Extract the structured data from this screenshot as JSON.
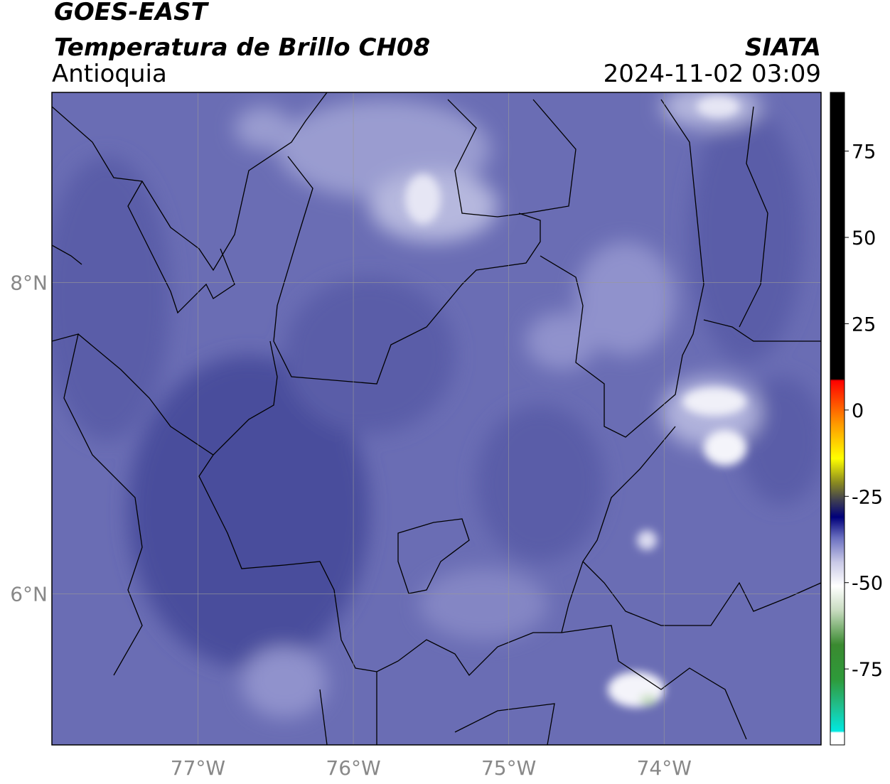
{
  "map": {
    "title": "GOES-EAST",
    "subtitle": "Temperatura de Brillo CH08",
    "region": "Antioquia",
    "source": "SIATA",
    "datetime": "2024-11-02 03:09",
    "xlim": [
      -77.94,
      -72.99
    ],
    "ylim": [
      5.03,
      9.22
    ],
    "xticks": [
      {
        "value": -77,
        "label": "77°W"
      },
      {
        "value": -76,
        "label": "76°W"
      },
      {
        "value": -75,
        "label": "75°W"
      },
      {
        "value": -74,
        "label": "74°W"
      }
    ],
    "yticks": [
      {
        "value": 8,
        "label": "8°N"
      },
      {
        "value": 6,
        "label": "6°N"
      }
    ],
    "grid": true,
    "colorbar": {
      "lim": [
        -97,
        92
      ],
      "ticks": [
        75,
        50,
        25,
        0,
        -25,
        -50,
        -75
      ],
      "stops": [
        {
          "value": -97,
          "color": "#ffffff"
        },
        {
          "value": -93.5,
          "color": "#ffffff"
        },
        {
          "value": -93,
          "color": "#00e8e0"
        },
        {
          "value": -86,
          "color": "#20c090"
        },
        {
          "value": -78,
          "color": "#2e9a3a"
        },
        {
          "value": -68,
          "color": "#3a8a30"
        },
        {
          "value": -58,
          "color": "#c8dcc0"
        },
        {
          "value": -51,
          "color": "#ffffff"
        },
        {
          "value": -44,
          "color": "#c8c8e6"
        },
        {
          "value": -37,
          "color": "#6a6fc0"
        },
        {
          "value": -31,
          "color": "#00007a"
        },
        {
          "value": -26,
          "color": "#404050"
        },
        {
          "value": -21,
          "color": "#8a8a20"
        },
        {
          "value": -14,
          "color": "#ffff00"
        },
        {
          "value": -4,
          "color": "#ff9900"
        },
        {
          "value": 6,
          "color": "#ff2000"
        },
        {
          "value": 8.5,
          "color": "#ff0000"
        },
        {
          "value": 9,
          "color": "#000000"
        },
        {
          "value": 92,
          "color": "#000000"
        }
      ]
    }
  }
}
